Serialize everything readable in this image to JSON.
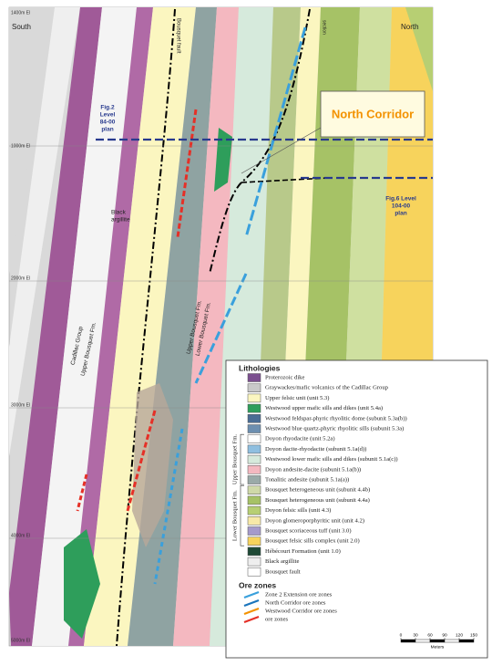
{
  "map": {
    "labels": {
      "elev": [
        "1400m El",
        "1000m El",
        "2000m El",
        "3000m El",
        "4000m El",
        "5000m El"
      ],
      "south": "South",
      "north": "North",
      "bousquet_fault": "Bousquet fault",
      "section": "section",
      "fig2": [
        "Fig.2",
        "Level",
        "84-00",
        "plan"
      ],
      "north_corridor": "North Corridor",
      "fig6": [
        "Fig.6 Level",
        "104-00",
        "plan"
      ],
      "black_argillite": [
        "Black",
        "argillite"
      ],
      "cadillac": "Cadillac Group",
      "upper_bousquet_left": "Upper Bousquet Fm.",
      "upper_bousquet_mid": "Upper Bousquet Fm.",
      "lower_bousquet_mid": "Lower Bousquet Fm."
    },
    "legend": {
      "title": "Lithologies",
      "lithologies": [
        {
          "label": "Proterozoic dike",
          "color": "#7b4f8f"
        },
        {
          "label": "Graywackes/mafic volcanics of the Cadillac Group",
          "color": "#c9c9c9"
        },
        {
          "label": "Upper felsic unit (unit 5.3)",
          "color": "#fbf6c0"
        },
        {
          "label": "Westwood upper mafic sills and dikes (unit 5.4a)",
          "color": "#2e9e5b"
        },
        {
          "label": "Westwood feldspar-phyric rhyolitic dome (subunit 5.3a(b))",
          "color": "#4a6d94"
        },
        {
          "label": "Westwood blue quartz-phyric rhyolitic sills (subunit 5.3a)",
          "color": "#6d8fb0"
        },
        {
          "label": "Doyon rhyodacite (unit 5.2a)",
          "color": "#ffffff"
        },
        {
          "label": "Doyon dacite-rhyodacite (subunit 5.1a(d))",
          "color": "#8fbfe0"
        },
        {
          "label": "Westwood lower mafic sills and dikes (subunit 5.1a(c))",
          "color": "#d6eadc"
        },
        {
          "label": "Doyon andesite-dacite (subunit 5.1a(b))",
          "color": "#f4b8c0"
        },
        {
          "label": "Tonalitic andesite (subunit 5.1a(a))",
          "color": "#9aaaa8"
        },
        {
          "label": "Bousquet heterogeneous unit (subunit 4.4b)",
          "color": "#cfd9a8"
        },
        {
          "label": "Bousquet heterogeneous unit (subunit 4.4a)",
          "color": "#a6c266"
        },
        {
          "label": "Doyon felsic sills (unit 4.3)",
          "color": "#b7cf73"
        },
        {
          "label": "Doyon glomeroporphyritic unit (unit 4.2)",
          "color": "#f7e9a8"
        },
        {
          "label": "Bousquet scoriaceous tuff (unit 3.0)",
          "color": "#a59acb"
        },
        {
          "label": "Bousquet felsic sills complex (unit 2.0)",
          "color": "#f7d35c"
        },
        {
          "label": "Hébécourt Formation (unit 1.0)",
          "color": "#1f4a36"
        },
        {
          "label": "Black argillite",
          "color": "#eeeeee"
        },
        {
          "label": "Bousquet fault",
          "color": "#ffffff"
        }
      ],
      "groups": [
        "Upper Bousquet Fm.",
        "Lower Bousquet Fm."
      ],
      "ore_title": "Ore zones",
      "ore_zones": [
        {
          "label": "Zone 2 Extension ore zones",
          "color": "#3aa0dc"
        },
        {
          "label": "North Corridor ore zones",
          "color": "#1b75bc"
        },
        {
          "label": "Westwood Corridor ore zones",
          "color": "#f39200"
        },
        {
          "label": "ore zones",
          "color": "#e53027"
        }
      ],
      "scale": {
        "ticks": [
          0,
          30,
          60,
          90,
          120,
          150
        ],
        "unit": "Meters"
      }
    }
  }
}
